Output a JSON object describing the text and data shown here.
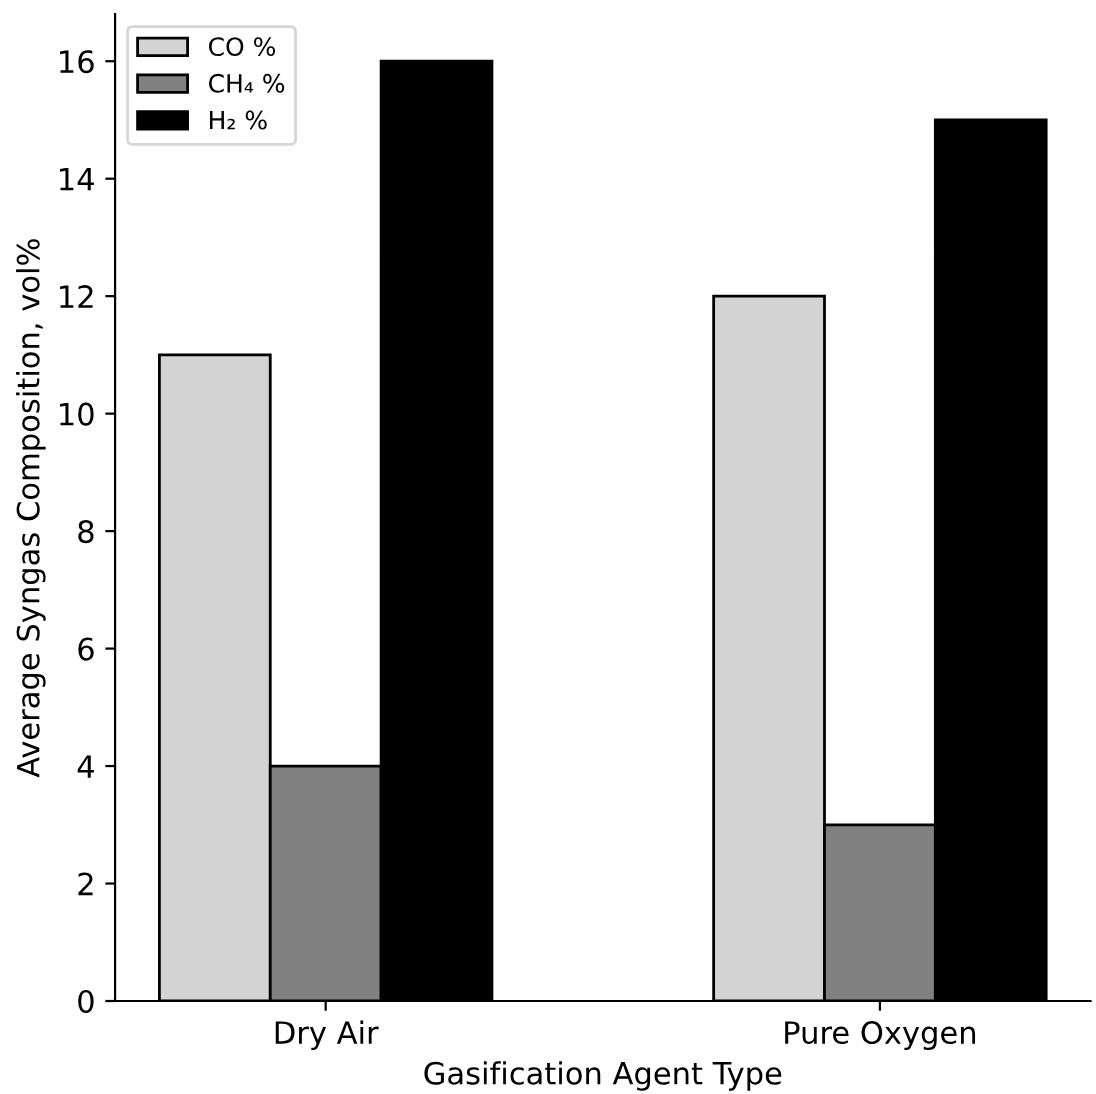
{
  "chart_data": {
    "type": "bar",
    "xlabel": "Gasification Agent Type",
    "ylabel": "Average Syngas Composition, vol%",
    "categories": [
      "Dry Air",
      "Pure Oxygen"
    ],
    "series": [
      {
        "name": "CO %",
        "color": "#d3d3d3",
        "values": [
          11,
          12
        ]
      },
      {
        "name": "CH₄ %",
        "color": "#808080",
        "values": [
          4,
          3
        ]
      },
      {
        "name": "H₂ %",
        "color": "#000000",
        "values": [
          16,
          15
        ]
      }
    ],
    "ylim": [
      0,
      16.8
    ],
    "yticks": [
      0,
      2,
      4,
      6,
      8,
      10,
      12,
      14,
      16
    ],
    "legend": "top left",
    "grid": false
  }
}
